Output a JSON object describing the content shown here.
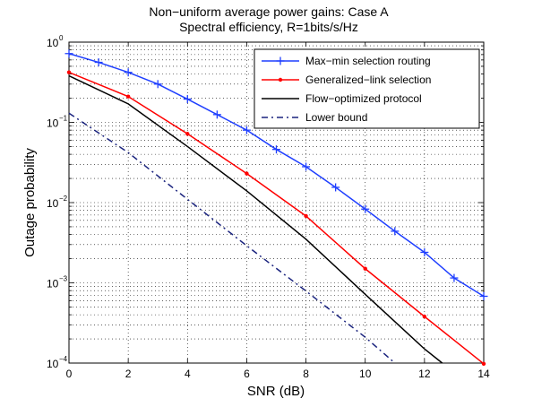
{
  "chart_data": {
    "type": "line",
    "title": "Non−uniform average power gains: Case A",
    "subtitle": "Spectral efficiency, R=1bits/s/Hz",
    "xlabel": "SNR (dB)",
    "ylabel": "Outage probability",
    "xlim": [
      0,
      14
    ],
    "ylim": [
      0.0001,
      1
    ],
    "yscale": "log",
    "grid": true,
    "legend_position": "top-right",
    "x_ticks": [
      "0",
      "2",
      "4",
      "6",
      "8",
      "10",
      "12",
      "14"
    ],
    "y_ticks": [
      {
        "value": 1,
        "base": "10",
        "exp": "0"
      },
      {
        "value": 0.1,
        "base": "10",
        "exp": "−1"
      },
      {
        "value": 0.01,
        "base": "10",
        "exp": "−2"
      },
      {
        "value": 0.001,
        "base": "10",
        "exp": "−3"
      },
      {
        "value": 0.0001,
        "base": "10",
        "exp": "−4"
      }
    ],
    "series": [
      {
        "name": "Max−min selection routing",
        "color": "#1f3fff",
        "style": "solid",
        "marker": "plus",
        "x": [
          0,
          1,
          2,
          3,
          4,
          5,
          6,
          7,
          8,
          9,
          10,
          11,
          12,
          13,
          14
        ],
        "y": [
          0.72,
          0.56,
          0.42,
          0.3,
          0.195,
          0.125,
          0.08,
          0.046,
          0.028,
          0.0155,
          0.0083,
          0.0044,
          0.0024,
          0.00115,
          0.00068
        ]
      },
      {
        "name": "Generalized−link selection",
        "color": "#ff0000",
        "style": "solid",
        "marker": "dot",
        "x": [
          0,
          2,
          4,
          6,
          8,
          10,
          12,
          14
        ],
        "y": [
          0.42,
          0.21,
          0.072,
          0.023,
          0.0068,
          0.0015,
          0.00038,
          9.8e-05
        ]
      },
      {
        "name": "Flow−optimized protocol",
        "color": "#000000",
        "style": "solid",
        "marker": "none",
        "x": [
          0,
          2,
          4,
          6,
          8,
          10,
          12,
          12.6
        ],
        "y": [
          0.38,
          0.17,
          0.05,
          0.014,
          0.0035,
          0.00072,
          0.00015,
          0.0001
        ]
      },
      {
        "name": "Lower bound",
        "color": "#1a237e",
        "style": "dashdot",
        "marker": "none",
        "x": [
          0,
          2,
          4,
          6,
          8,
          10,
          11
        ],
        "y": [
          0.13,
          0.042,
          0.011,
          0.0029,
          0.00079,
          0.00021,
          0.0001
        ]
      }
    ]
  }
}
